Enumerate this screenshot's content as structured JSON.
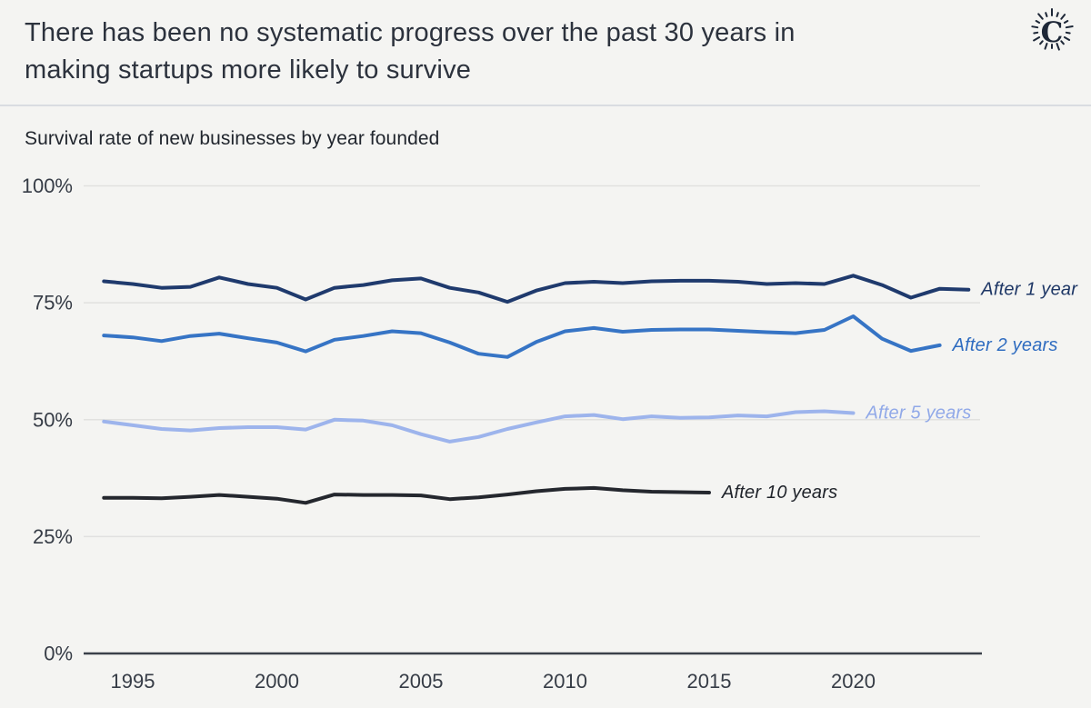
{
  "header": {
    "title_line1": "There has been no systematic progress over the past 30 years in",
    "title_line2": "making startups more likely to survive",
    "logo_letter": "C",
    "logo_color": "#1d2737"
  },
  "chart_data": {
    "type": "line",
    "title": "Survival rate of new businesses by year founded",
    "xlabel": "Year founded",
    "ylabel": "Survival rate",
    "ylim": [
      0,
      100
    ],
    "xlim": [
      1994,
      2025
    ],
    "grid": "horizontal",
    "legend_position": "end-of-line-labels",
    "background_color": "#f4f4f2",
    "y_axis": {
      "ticks": [
        {
          "label": "100%",
          "value": 100
        },
        {
          "label": "75%",
          "value": 75
        },
        {
          "label": "50%",
          "value": 50
        },
        {
          "label": "25%",
          "value": 25
        },
        {
          "label": "0%",
          "value": 0
        }
      ]
    },
    "x_axis": {
      "ticks": [
        {
          "label": "1995",
          "value": 1995
        },
        {
          "label": "2000",
          "value": 2000
        },
        {
          "label": "2005",
          "value": 2005
        },
        {
          "label": "2010",
          "value": 2010
        },
        {
          "label": "2015",
          "value": 2015
        },
        {
          "label": "2020",
          "value": 2020
        }
      ]
    },
    "series": [
      {
        "name": "After 1 year",
        "color": "#1f3a6d",
        "label_color": "#1e3766",
        "start_year": 1994,
        "end_year": 2024,
        "values": [
          79.6,
          79.0,
          78.2,
          78.4,
          80.4,
          79.0,
          78.2,
          75.7,
          78.2,
          78.8,
          79.8,
          80.2,
          78.2,
          77.2,
          75.2,
          77.6,
          79.2,
          79.5,
          79.2,
          79.6,
          79.7,
          79.7,
          79.5,
          79.0,
          79.2,
          79.0,
          80.8,
          78.8,
          76.1,
          78.0,
          77.8
        ]
      },
      {
        "name": "After 2 years",
        "color": "#3674c5",
        "label_color": "#2f6cc0",
        "start_year": 1994,
        "end_year": 2023,
        "values": [
          68.0,
          67.6,
          66.8,
          67.9,
          68.4,
          67.4,
          66.5,
          64.6,
          67.1,
          67.9,
          68.9,
          68.5,
          66.5,
          64.1,
          63.4,
          66.6,
          68.9,
          69.6,
          68.8,
          69.2,
          69.3,
          69.3,
          69.0,
          68.7,
          68.5,
          69.2,
          72.1,
          67.3,
          64.7,
          65.9
        ]
      },
      {
        "name": "After 5 years",
        "color": "#9db4ec",
        "label_color": "#91a9e8",
        "start_year": 1994,
        "end_year": 2020,
        "values": [
          49.6,
          48.8,
          48.0,
          47.7,
          48.2,
          48.4,
          48.4,
          47.9,
          50.0,
          49.8,
          48.8,
          46.9,
          45.3,
          46.3,
          48.0,
          49.4,
          50.7,
          51.0,
          50.1,
          50.7,
          50.4,
          50.5,
          50.9,
          50.7,
          51.6,
          51.8,
          51.4
        ]
      },
      {
        "name": "After 10 years",
        "color": "#24272e",
        "label_color": "#20242b",
        "start_year": 1994,
        "end_year": 2015,
        "values": [
          33.3,
          33.3,
          33.2,
          33.5,
          33.9,
          33.5,
          33.1,
          32.2,
          34.0,
          33.9,
          33.9,
          33.8,
          33.0,
          33.4,
          34.0,
          34.7,
          35.2,
          35.4,
          34.9,
          34.6,
          34.5,
          34.4
        ]
      }
    ]
  }
}
